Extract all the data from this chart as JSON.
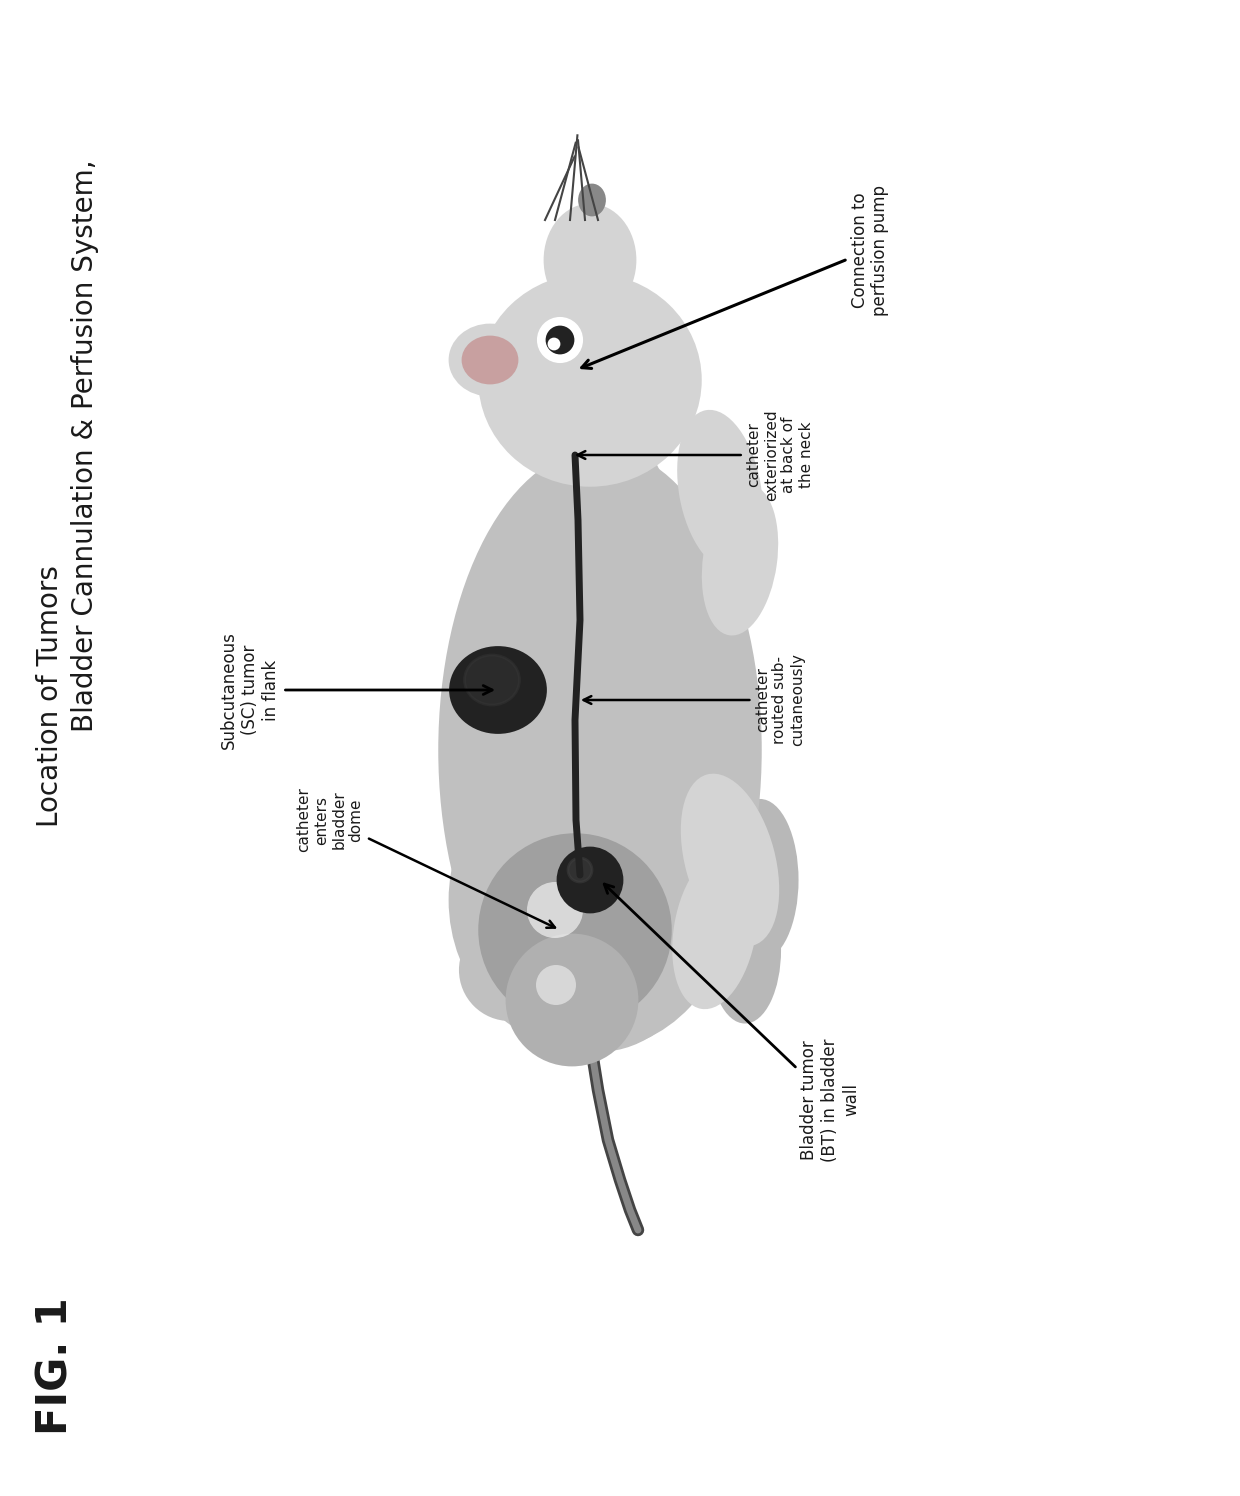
{
  "title_line1": "Bladder Cannulation & Perfusion System,",
  "title_line2": "Location of Tumors",
  "fig_label": "FIG. 1",
  "labels": {
    "sc_tumor": "Subcutaneous\n(SC) tumor\nin flank",
    "catheter_dome": "catheter\nenters\nbladder\ndome",
    "bladder_tumor": "Bladder tumor\n(BT) in bladder\nwall",
    "catheter_routed": "catheter\nrouted sub-\ncutaneously",
    "catheter_neck": "catheter\nexteriorized\nat back of\nthe neck",
    "connection": "Connection to\nperfusion pump"
  },
  "bg_color": "#ffffff",
  "text_color": "#1a1a1a",
  "title_fontsize": 20,
  "label_fontsize": 11,
  "fig_label_fontsize": 30
}
